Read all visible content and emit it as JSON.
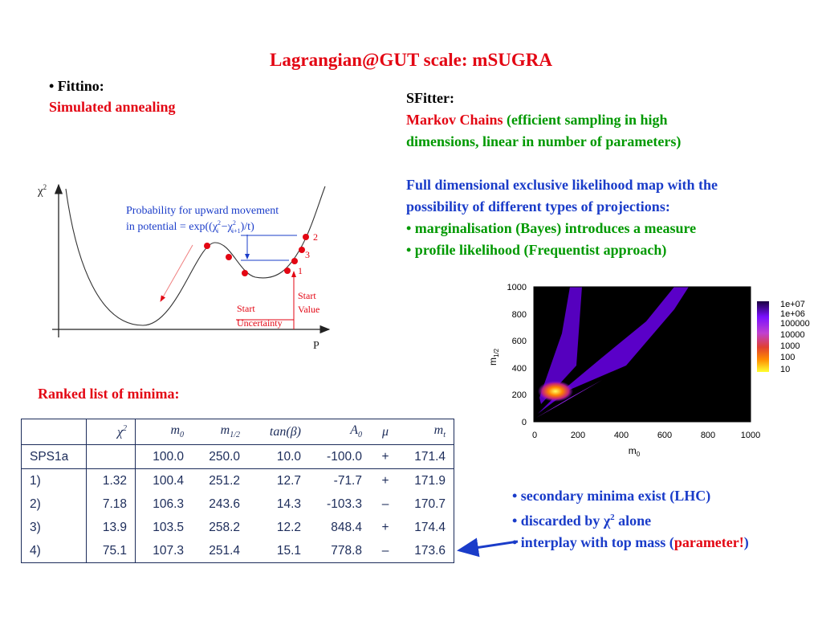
{
  "title": "Lagrangian@GUT scale: mSUGRA",
  "left": {
    "bullet": "• Fittino:",
    "method": "Simulated annealing",
    "ranked_heading": "Ranked list of minima:"
  },
  "sfitter": {
    "heading": "SFitter:",
    "markov": "Markov Chains",
    "markov_rest": " (efficient sampling in high",
    "markov_line2": "dimensions, linear in number of parameters)",
    "full_line1": "Full dimensional exclusive likelihood map with the",
    "full_line2": "possibility of different types of projections:",
    "bullet1": "• marginalisation (Bayes) introduces a measure",
    "bullet2": "• profile likelihood (Frequentist approach)"
  },
  "annealing_diagram": {
    "y_axis": "χ",
    "y_axis_sup": "2",
    "x_axis": "P",
    "prob_line1": "Probability for upward movement",
    "prob_line2_a": "in potential = exp((",
    "chi": "χ",
    "sup2": "2",
    "sub_i": "i",
    "minus": " −",
    "sub_i1": "i+1",
    "prob_line2_b": ")/t)",
    "label_1": "1",
    "label_2": "2",
    "label_3": "3",
    "start_value_1": "Start",
    "start_value_2": "Value",
    "start_unc_1": "Start",
    "start_unc_2": "Uncertainty"
  },
  "heatmap": {
    "ylabel": "m",
    "ylabel_sub": "1/2",
    "xlabel": "m",
    "xlabel_sub": "0",
    "x_ticks": [
      "0",
      "200",
      "400",
      "600",
      "800",
      "1000"
    ],
    "y_ticks": [
      "0",
      "200",
      "400",
      "600",
      "800",
      "1000"
    ],
    "colorbar_labels": [
      "1e+07",
      "1e+06",
      "100000",
      "10000",
      "1000",
      "100",
      "10"
    ]
  },
  "table": {
    "headers": [
      "",
      "χ2",
      "m0",
      "m1/2",
      "tan(β)",
      "A0",
      "μ",
      "mt"
    ],
    "rows": [
      [
        "SPS1a",
        "",
        "100.0",
        "250.0",
        "10.0",
        "-100.0",
        "+",
        "171.4"
      ],
      [
        "1)",
        "1.32",
        "100.4",
        "251.2",
        "12.7",
        "-71.7",
        "+",
        "171.9"
      ],
      [
        "2)",
        "7.18",
        "106.3",
        "243.6",
        "14.3",
        "-103.3",
        "–",
        "170.7"
      ],
      [
        "3)",
        "13.9",
        "103.5",
        "258.2",
        "12.2",
        "848.4",
        "+",
        "174.4"
      ],
      [
        "4)",
        "75.1",
        "107.3",
        "251.4",
        "15.1",
        "778.8",
        "–",
        "173.6"
      ]
    ]
  },
  "notes": {
    "n1": "• secondary minima exist (LHC)",
    "n2_a": "• discarded by χ",
    "n2_sup": "2",
    "n2_b": " alone",
    "n3_a": "• interplay with top mass (",
    "n3_b": "parameter!",
    "n3_c": ")"
  },
  "colors": {
    "title": "#e30613",
    "accent_green": "#009900",
    "diagram_blue": "#1a3cc9",
    "table_ink": "#1c2c5a"
  }
}
